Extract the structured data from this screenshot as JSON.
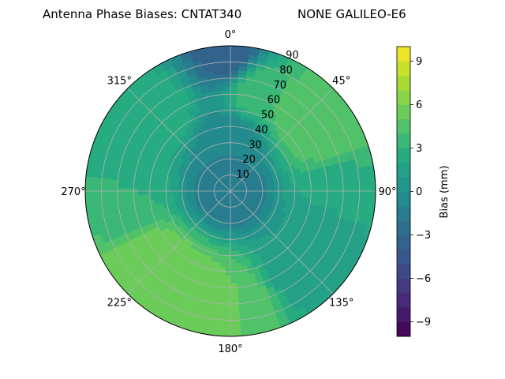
{
  "chart_data": {
    "type": "heatmap",
    "projection": "polar",
    "title_left": "Antenna Phase Biases: CNTAT340",
    "title_right": "NONE GALILEO-E6",
    "azimuth_ticks": [
      "0°",
      "45°",
      "90°",
      "135°",
      "180°",
      "225°",
      "270°",
      "315°"
    ],
    "azimuth_tick_values": [
      0,
      45,
      90,
      135,
      180,
      225,
      270,
      315
    ],
    "radial_ticks": [
      "10",
      "20",
      "30",
      "40",
      "50",
      "60",
      "70",
      "80",
      "90"
    ],
    "radial_tick_values": [
      10,
      20,
      30,
      40,
      50,
      60,
      70,
      80,
      90
    ],
    "radial_range": [
      0,
      90
    ],
    "azimuth_direction": "clockwise",
    "azimuth_zero": "top",
    "grid": true,
    "colorbar": {
      "label": "Bias (mm)",
      "range": [
        -10,
        10
      ],
      "ticks": [
        "9",
        "6",
        "3",
        "0",
        "−3",
        "−6",
        "−9"
      ],
      "tick_values": [
        9,
        6,
        3,
        0,
        -3,
        -6,
        -9
      ],
      "colormap": "viridis",
      "levels": 20
    },
    "field_samples": [
      {
        "azimuth": 0,
        "elevation": 90,
        "bias": -2
      },
      {
        "azimuth": 0,
        "elevation": 60,
        "bias": -1
      },
      {
        "azimuth": 15,
        "elevation": 25,
        "bias": 4
      },
      {
        "azimuth": 45,
        "elevation": 25,
        "bias": 5
      },
      {
        "azimuth": 60,
        "elevation": 20,
        "bias": 5
      },
      {
        "azimuth": 90,
        "elevation": 25,
        "bias": 2
      },
      {
        "azimuth": 135,
        "elevation": 30,
        "bias": 1
      },
      {
        "azimuth": 180,
        "elevation": 20,
        "bias": 5
      },
      {
        "azimuth": 200,
        "elevation": 20,
        "bias": 6
      },
      {
        "azimuth": 225,
        "elevation": 25,
        "bias": 6
      },
      {
        "azimuth": 270,
        "elevation": 25,
        "bias": 3
      },
      {
        "azimuth": 315,
        "elevation": 25,
        "bias": 3
      },
      {
        "azimuth": 0,
        "elevation": 5,
        "bias": -4
      }
    ]
  }
}
